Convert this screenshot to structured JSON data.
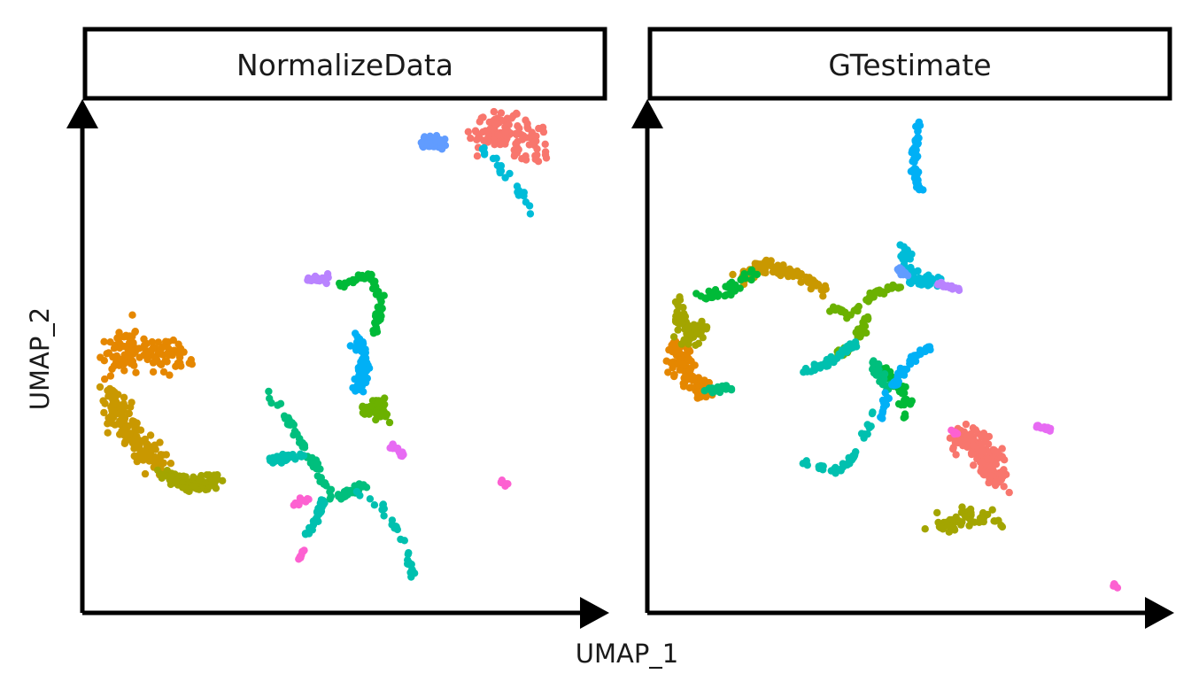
{
  "chart_data": {
    "type": "scatter",
    "xlabel": "UMAP_1",
    "ylabel": "UMAP_2",
    "grid": false,
    "legend": "none",
    "panels": [
      {
        "title": "NormalizeData",
        "clusters": [
          {
            "color": "#F8766D",
            "size": 120,
            "segments": [
              [
                [
                  7.6,
                  9.6
                ],
                [
                  8.3,
                  9.7
                ],
                [
                  8.9,
                  9.2
                ]
              ]
            ],
            "spread": 0.35
          },
          {
            "color": "#E58700",
            "size": 120,
            "segments": [
              [
                [
                  0.4,
                  5.0
                ],
                [
                  0.8,
                  5.2
                ],
                [
                  1.8,
                  5.0
                ]
              ]
            ],
            "spread": 0.3
          },
          {
            "color": "#C99800",
            "size": 150,
            "segments": [
              [
                [
                  0.3,
                  4.3
                ],
                [
                  0.5,
                  3.8
                ],
                [
                  0.9,
                  3.1
                ],
                [
                  1.3,
                  2.8
                ]
              ]
            ],
            "spread": 0.2
          },
          {
            "color": "#A3A500",
            "size": 110,
            "segments": [
              [
                [
                  1.4,
                  2.6
                ],
                [
                  1.8,
                  2.4
                ],
                [
                  2.4,
                  2.5
                ]
              ]
            ],
            "spread": 0.15
          },
          {
            "color": "#6BB100",
            "size": 60,
            "segments": [
              [
                [
                  5.4,
                  3.9
                ],
                [
                  5.7,
                  4.1
                ],
                [
                  5.8,
                  3.8
                ]
              ]
            ],
            "spread": 0.12
          },
          {
            "color": "#00BA38",
            "size": 70,
            "segments": [
              [
                [
                  4.8,
                  6.4
                ],
                [
                  5.5,
                  6.7
                ],
                [
                  5.8,
                  6.2
                ],
                [
                  5.6,
                  5.5
                ]
              ]
            ],
            "spread": 0.05
          },
          {
            "color": "#00BF7D",
            "size": 70,
            "segments": [
              [
                [
                  3.5,
                  4.3
                ],
                [
                  4.2,
                  3.2
                ],
                [
                  4.8,
                  2.1
                ],
                [
                  5.4,
                  2.4
                ]
              ]
            ],
            "spread": 0.07
          },
          {
            "color": "#00C0AF",
            "size": 90,
            "segments": [
              [
                [
                  5.2,
                  2.3
                ],
                [
                  5.8,
                  1.9
                ],
                [
                  6.2,
                  1.3
                ],
                [
                  6.4,
                  0.5
                ]
              ],
              [
                [
                  4.6,
                  2.1
                ],
                [
                  4.3,
                  1.4
                ]
              ],
              [
                [
                  3.5,
                  2.9
                ],
                [
                  4.2,
                  3.0
                ]
              ]
            ],
            "spread": 0.06
          },
          {
            "color": "#00BCD8",
            "size": 25,
            "segments": [
              [
                [
                  7.8,
                  9.3
                ],
                [
                  8.4,
                  8.6
                ],
                [
                  8.8,
                  8.0
                ]
              ]
            ],
            "spread": 0.08
          },
          {
            "color": "#00B0F6",
            "size": 60,
            "segments": [
              [
                [
                  5.3,
                  5.4
                ],
                [
                  5.4,
                  4.8
                ],
                [
                  5.3,
                  4.3
                ]
              ]
            ],
            "spread": 0.1
          },
          {
            "color": "#619CFF",
            "size": 40,
            "segments": [
              [
                [
                  6.6,
                  9.4
                ],
                [
                  7.0,
                  9.4
                ]
              ]
            ],
            "spread": 0.1
          },
          {
            "color": "#B983FF",
            "size": 25,
            "segments": [
              [
                [
                  4.3,
                  6.6
                ],
                [
                  4.7,
                  6.6
                ]
              ]
            ],
            "spread": 0.06
          },
          {
            "color": "#E76BF3",
            "size": 18,
            "segments": [
              [
                [
                  5.9,
                  3.3
                ],
                [
                  6.2,
                  3.0
                ]
              ]
            ],
            "spread": 0.04
          },
          {
            "color": "#FD61D1",
            "size": 30,
            "segments": [
              [
                [
                  4.0,
                  2.0
                ],
                [
                  4.3,
                  2.1
                ]
              ],
              [
                [
                  4.2,
                  1.1
                ],
                [
                  4.1,
                  0.9
                ]
              ],
              [
                [
                  8.2,
                  2.5
                ],
                [
                  8.3,
                  2.4
                ]
              ]
            ],
            "spread": 0.04
          }
        ]
      },
      {
        "title": "GTestimate",
        "clusters": [
          {
            "color": "#F8766D",
            "size": 140,
            "segments": [
              [
                [
                  6.0,
                  3.4
                ],
                [
                  6.6,
                  3.0
                ],
                [
                  6.8,
                  2.5
                ]
              ]
            ],
            "spread": 0.25
          },
          {
            "color": "#E58700",
            "size": 120,
            "segments": [
              [
                [
                  0.3,
                  5.3
                ],
                [
                  0.5,
                  4.6
                ],
                [
                  0.9,
                  4.3
                ]
              ]
            ],
            "spread": 0.18
          },
          {
            "color": "#C99800",
            "size": 110,
            "segments": [
              [
                [
                  1.6,
                  6.6
                ],
                [
                  2.1,
                  6.9
                ],
                [
                  2.7,
                  6.7
                ],
                [
                  3.3,
                  6.4
                ]
              ]
            ],
            "spread": 0.1
          },
          {
            "color": "#A3A500",
            "size": 120,
            "segments": [
              [
                [
                  0.4,
                  6.2
                ],
                [
                  0.5,
                  5.4
                ],
                [
                  0.9,
                  5.7
                ]
              ],
              [
                [
                  5.5,
                  1.5
                ],
                [
                  6.3,
                  1.8
                ],
                [
                  6.9,
                  1.7
                ]
              ]
            ],
            "spread": 0.15
          },
          {
            "color": "#6BB100",
            "size": 90,
            "segments": [
              [
                [
                  3.4,
                  6.0
                ],
                [
                  3.9,
                  5.9
                ],
                [
                  4.3,
                  6.3
                ],
                [
                  4.8,
                  6.5
                ]
              ],
              [
                [
                  4.2,
                  5.9
                ],
                [
                  3.9,
                  5.2
                ],
                [
                  3.6,
                  5.1
                ]
              ]
            ],
            "spread": 0.07
          },
          {
            "color": "#00BA38",
            "size": 80,
            "segments": [
              [
                [
                  0.8,
                  6.2
                ],
                [
                  1.4,
                  6.4
                ],
                [
                  1.9,
                  6.8
                ]
              ],
              [
                [
                  4.5,
                  4.8
                ],
                [
                  4.9,
                  4.3
                ],
                [
                  5.0,
                  3.8
                ]
              ]
            ],
            "spread": 0.1
          },
          {
            "color": "#00BF7D",
            "size": 50,
            "segments": [
              [
                [
                  4.3,
                  4.9
                ],
                [
                  4.6,
                  4.3
                ]
              ],
              [
                [
                  0.9,
                  4.3
                ],
                [
                  1.4,
                  4.4
                ]
              ]
            ],
            "spread": 0.08
          },
          {
            "color": "#00C0AF",
            "size": 90,
            "segments": [
              [
                [
                  2.9,
                  2.8
                ],
                [
                  3.6,
                  2.7
                ],
                [
                  4.0,
                  3.1
                ],
                [
                  4.3,
                  3.9
                ]
              ],
              [
                [
                  2.9,
                  4.7
                ],
                [
                  3.4,
                  4.9
                ],
                [
                  3.9,
                  5.3
                ]
              ]
            ],
            "spread": 0.06
          },
          {
            "color": "#00BCD8",
            "size": 70,
            "segments": [
              [
                [
                  4.9,
                  7.2
                ],
                [
                  5.1,
                  6.6
                ],
                [
                  5.6,
                  6.5
                ]
              ]
            ],
            "spread": 0.12
          },
          {
            "color": "#00B0F6",
            "size": 120,
            "segments": [
              [
                [
                  5.2,
                  9.8
                ],
                [
                  5.1,
                  9.0
                ],
                [
                  5.2,
                  8.4
                ]
              ],
              [
                [
                  4.4,
                  3.7
                ],
                [
                  4.6,
                  4.3
                ],
                [
                  5.0,
                  4.9
                ],
                [
                  5.5,
                  5.3
                ]
              ]
            ],
            "spread": 0.05
          },
          {
            "color": "#619CFF",
            "size": 15,
            "segments": [
              [
                [
                  4.8,
                  6.8
                ],
                [
                  5.0,
                  6.7
                ]
              ]
            ],
            "spread": 0.05
          },
          {
            "color": "#B983FF",
            "size": 20,
            "segments": [
              [
                [
                  5.6,
                  6.5
                ],
                [
                  6.0,
                  6.4
                ]
              ]
            ],
            "spread": 0.04
          },
          {
            "color": "#E76BF3",
            "size": 18,
            "segments": [
              [
                [
                  7.6,
                  3.6
                ],
                [
                  7.9,
                  3.5
                ]
              ]
            ],
            "spread": 0.04
          },
          {
            "color": "#FD61D1",
            "size": 12,
            "segments": [
              [
                [
                  9.1,
                  0.4
                ],
                [
                  9.2,
                  0.3
                ]
              ],
              [
                [
                  5.9,
                  3.5
                ],
                [
                  6.0,
                  3.4
                ]
              ]
            ],
            "spread": 0.03
          }
        ]
      }
    ]
  }
}
